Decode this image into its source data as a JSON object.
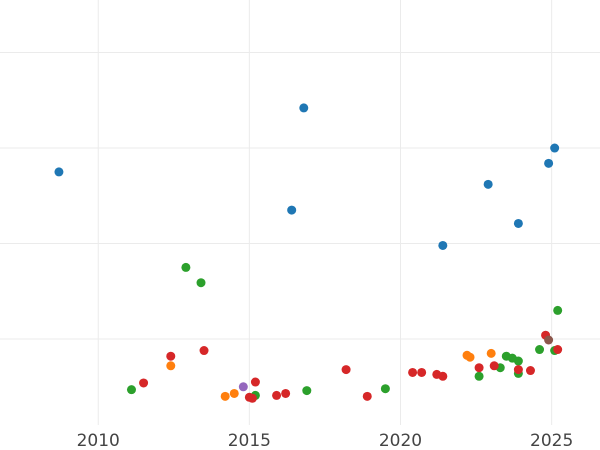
{
  "chart_data": {
    "type": "scatter",
    "title": "",
    "xlabel": "",
    "ylabel": "",
    "xlim": [
      2006.75,
      2026.6
    ],
    "ylim": [
      -0.9,
      3.55
    ],
    "grid": {
      "x": true,
      "y": true
    },
    "x_ticks": [
      2010,
      2015,
      2020,
      2025
    ],
    "x_tick_labels": [
      "2010",
      "2015",
      "2020",
      "2025"
    ],
    "y_ticks": [
      0,
      1,
      2,
      3,
      4
    ],
    "series": [
      {
        "color": "#1f77b4",
        "points": [
          {
            "x": 2008.7,
            "y": 1.75
          },
          {
            "x": 2016.4,
            "y": 1.35
          },
          {
            "x": 2016.8,
            "y": 2.42
          },
          {
            "x": 2021.4,
            "y": 0.98
          },
          {
            "x": 2022.9,
            "y": 1.62
          },
          {
            "x": 2023.9,
            "y": 1.21
          },
          {
            "x": 2024.9,
            "y": 1.84
          },
          {
            "x": 2025.1,
            "y": 2.0
          }
        ]
      },
      {
        "color": "#ff7f0e",
        "points": [
          {
            "x": 2012.4,
            "y": -0.28
          },
          {
            "x": 2014.2,
            "y": -0.6
          },
          {
            "x": 2014.5,
            "y": -0.57
          },
          {
            "x": 2022.2,
            "y": -0.17
          },
          {
            "x": 2022.3,
            "y": -0.19
          },
          {
            "x": 2023.0,
            "y": -0.15
          }
        ]
      },
      {
        "color": "#2ca02c",
        "points": [
          {
            "x": 2011.1,
            "y": -0.53
          },
          {
            "x": 2012.9,
            "y": 0.75
          },
          {
            "x": 2013.4,
            "y": 0.59
          },
          {
            "x": 2015.2,
            "y": -0.59
          },
          {
            "x": 2016.9,
            "y": -0.54
          },
          {
            "x": 2019.5,
            "y": -0.52
          },
          {
            "x": 2022.6,
            "y": -0.39
          },
          {
            "x": 2023.3,
            "y": -0.3
          },
          {
            "x": 2023.5,
            "y": -0.18
          },
          {
            "x": 2023.7,
            "y": -0.2
          },
          {
            "x": 2023.9,
            "y": -0.23
          },
          {
            "x": 2023.9,
            "y": -0.36
          },
          {
            "x": 2024.6,
            "y": -0.11
          },
          {
            "x": 2025.1,
            "y": -0.12
          },
          {
            "x": 2025.2,
            "y": 0.3
          }
        ]
      },
      {
        "color": "#d62728",
        "points": [
          {
            "x": 2011.5,
            "y": -0.46
          },
          {
            "x": 2012.4,
            "y": -0.18
          },
          {
            "x": 2013.5,
            "y": -0.12
          },
          {
            "x": 2015.0,
            "y": -0.61
          },
          {
            "x": 2015.1,
            "y": -0.62
          },
          {
            "x": 2015.2,
            "y": -0.45
          },
          {
            "x": 2015.9,
            "y": -0.59
          },
          {
            "x": 2016.2,
            "y": -0.57
          },
          {
            "x": 2018.2,
            "y": -0.32
          },
          {
            "x": 2018.9,
            "y": -0.6
          },
          {
            "x": 2020.4,
            "y": -0.35
          },
          {
            "x": 2020.7,
            "y": -0.35
          },
          {
            "x": 2021.2,
            "y": -0.37
          },
          {
            "x": 2021.4,
            "y": -0.39
          },
          {
            "x": 2022.6,
            "y": -0.3
          },
          {
            "x": 2023.1,
            "y": -0.28
          },
          {
            "x": 2023.9,
            "y": -0.32
          },
          {
            "x": 2024.3,
            "y": -0.33
          },
          {
            "x": 2024.8,
            "y": 0.04
          },
          {
            "x": 2025.2,
            "y": -0.11
          }
        ]
      },
      {
        "color": "#9467bd",
        "points": [
          {
            "x": 2014.8,
            "y": -0.5
          }
        ]
      },
      {
        "color": "#8c564b",
        "points": [
          {
            "x": 2024.9,
            "y": -0.01
          }
        ]
      }
    ]
  }
}
